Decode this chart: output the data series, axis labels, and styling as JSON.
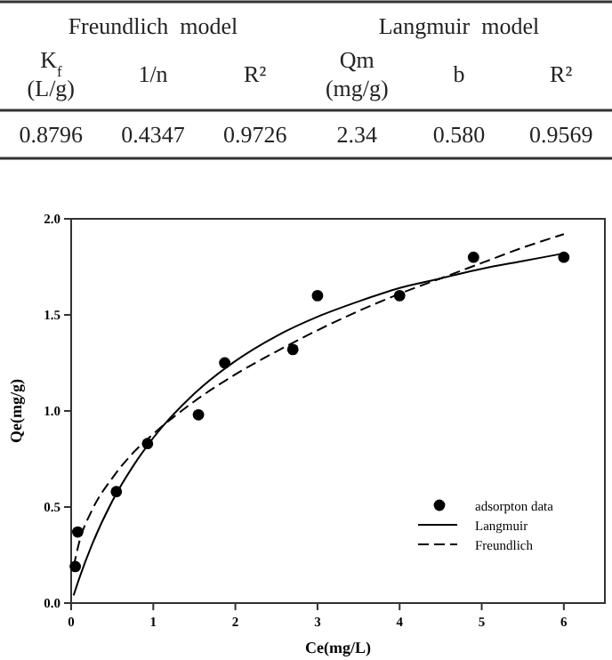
{
  "chart_data": [
    {
      "type": "other",
      "annotations": [
        "Freundlich  model",
        "Langmuir  model",
        "K$_{f}$ (L/g)",
        "1/n",
        "R²",
        "Qm (mg/g)",
        "b",
        "R²",
        "0.8796",
        "0.4347",
        "0.9726",
        "2.34",
        "0.580",
        "0.9569"
      ]
    },
    {
      "type": "scatter",
      "xlabel": "Ce(mg/L)",
      "ylabel": "Qe(mg/g)",
      "xlim": [
        0,
        6.5
      ],
      "ylim": [
        0,
        2
      ],
      "xticks": [
        0,
        1,
        2,
        3,
        4,
        5,
        6
      ],
      "yticks": [
        {
          "value": 0,
          "label": "0.0"
        },
        {
          "value": 0.5,
          "label": "0.5"
        },
        {
          "value": 1,
          "label": "1.0"
        },
        {
          "value": 1.5,
          "label": "1.5"
        },
        {
          "value": 2,
          "label": "2.0"
        }
      ],
      "grid": false,
      "legend": "bottom right",
      "series": [
        {
          "name": "adsorpton data",
          "type": "scatter",
          "color": "#000000",
          "marker": "circle",
          "x": [
            0.05,
            0.08,
            0.55,
            0.93,
            1.55,
            1.87,
            2.7,
            3.0,
            4.0,
            4.9,
            6.0
          ],
          "values": [
            0.19,
            0.37,
            0.58,
            0.83,
            0.98,
            1.25,
            1.32,
            1.6,
            1.6,
            1.8,
            1.8
          ]
        },
        {
          "name": "Langmuir",
          "type": "line",
          "color": "#000000",
          "line_style": "solid",
          "marker": "none",
          "x": [
            0.03,
            0.1,
            0.25,
            0.5,
            0.75,
            1,
            1.5,
            2,
            2.5,
            3,
            3.5,
            4,
            4.5,
            5,
            5.5,
            6
          ],
          "values": [
            0.04,
            0.13,
            0.3,
            0.53,
            0.71,
            0.86,
            1.09,
            1.26,
            1.39,
            1.49,
            1.57,
            1.64,
            1.69,
            1.74,
            1.78,
            1.82
          ]
        },
        {
          "name": "Freundlich",
          "type": "line",
          "color": "#000000",
          "line_style": "dashed",
          "marker": "none",
          "x": [
            0.03,
            0.1,
            0.25,
            0.5,
            0.75,
            1,
            1.5,
            2,
            2.5,
            3,
            3.5,
            4,
            4.5,
            5,
            5.5,
            6
          ],
          "values": [
            0.19,
            0.32,
            0.48,
            0.65,
            0.78,
            0.88,
            1.05,
            1.19,
            1.31,
            1.42,
            1.52,
            1.61,
            1.69,
            1.77,
            1.85,
            1.92
          ]
        }
      ]
    }
  ]
}
